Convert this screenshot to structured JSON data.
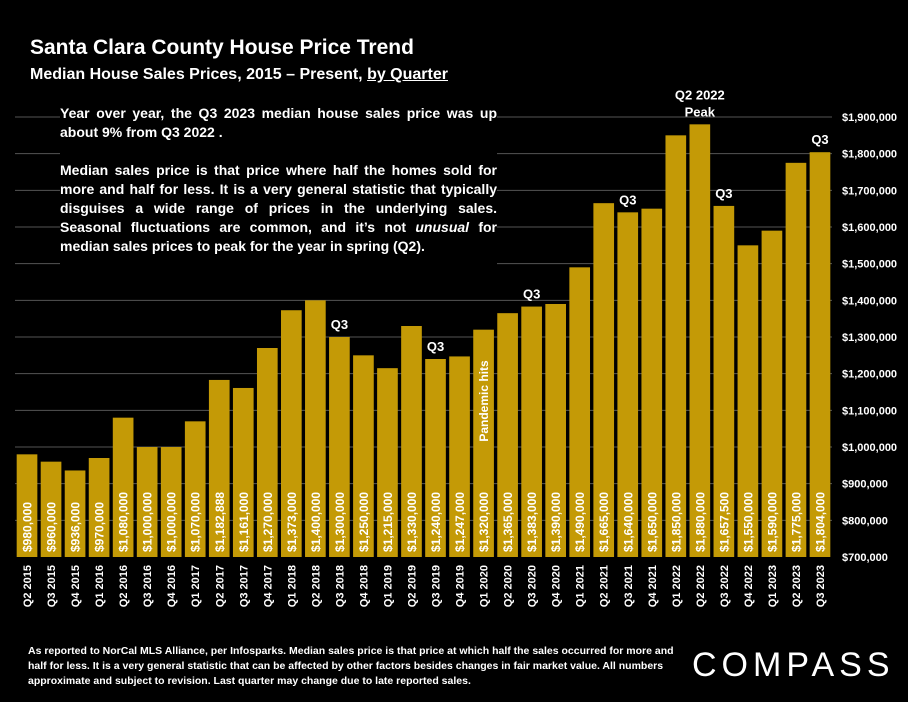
{
  "header": {
    "title": "Santa Clara County House Price Trend",
    "subtitle_main": "Median House Sales Prices, 2015 – Present, ",
    "subtitle_link": "by Quarter"
  },
  "note": {
    "p1": "Year over year, the Q3 2023 median house sales price was up about 9% from Q3 2022 .",
    "p2_a": "Median sales price is that price where half the homes sold for more and half for less. It is a very general statistic that typically disguises a wide range of prices in the underlying sales. Seasonal fluctuations are common, and it’s not ",
    "p2_em": "unusual",
    "p2_b": " for median sales prices to peak for the year in spring (Q2)."
  },
  "footer": {
    "text": "As reported to NorCal MLS Alliance, per Infosparks. Median sales price is that price at which half the sales occurred for more and half for less. It is a very general statistic that can be affected by other factors besides changes in fair market value. All numbers approximate and subject to revision. Last quarter may change due to late reported sales."
  },
  "logo": {
    "text": "COMPASS"
  },
  "colors": {
    "bar": "#c49a06",
    "background": "#000000",
    "text": "#ffffff",
    "grid": "#555555"
  },
  "chart_data": {
    "type": "bar",
    "categories": [
      "Q2 2015",
      "Q3 2015",
      "Q4 2015",
      "Q1 2016",
      "Q2 2016",
      "Q3 2016",
      "Q4 2016",
      "Q1 2017",
      "Q2 2017",
      "Q3 2017",
      "Q4 2017",
      "Q1 2018",
      "Q2 2018",
      "Q3 2018",
      "Q4 2018",
      "Q1 2019",
      "Q2 2019",
      "Q3 2019",
      "Q4 2019",
      "Q1 2020",
      "Q2 2020",
      "Q3 2020",
      "Q4 2020",
      "Q1 2021",
      "Q2 2021",
      "Q3 2021",
      "Q4 2021",
      "Q1 2022",
      "Q2 2022",
      "Q3 2022",
      "Q4 2022",
      "Q1 2023",
      "Q2 2023",
      "Q3 2023"
    ],
    "values": [
      980000,
      960000,
      936000,
      970000,
      1080000,
      1000000,
      1000000,
      1070000,
      1182888,
      1161000,
      1270000,
      1373000,
      1400000,
      1300000,
      1250000,
      1215000,
      1330000,
      1240000,
      1247000,
      1320000,
      1365000,
      1383000,
      1390000,
      1490000,
      1665000,
      1640000,
      1650000,
      1850000,
      1880000,
      1657500,
      1550000,
      1590000,
      1775000,
      1804000
    ],
    "value_labels": [
      "$980,000",
      "$960,000",
      "$936,000",
      "$970,000",
      "$1,080,000",
      "$1,000,000",
      "$1,000,000",
      "$1,070,000",
      "$1,182,888",
      "$1,161,000",
      "$1,270,000",
      "$1,373,000",
      "$1,400,000",
      "$1,300,000",
      "$1,250,000",
      "$1,215,000",
      "$1,330,000",
      "$1,240,000",
      "$1,247,000",
      "$1,320,000",
      "$1,365,000",
      "$1,383,000",
      "$1,390,000",
      "$1,490,000",
      "$1,665,000",
      "$1,640,000",
      "$1,650,000",
      "$1,850,000",
      "$1,880,000",
      "$1,657,500",
      "$1,550,000",
      "$1,590,000",
      "$1,775,000",
      "$1,804,000"
    ],
    "ylim": [
      700000,
      1900000
    ],
    "yticks": [
      700000,
      800000,
      900000,
      1000000,
      1100000,
      1200000,
      1300000,
      1400000,
      1500000,
      1600000,
      1700000,
      1800000,
      1900000
    ],
    "ytick_labels": [
      "$700,000",
      "$800,000",
      "$900,000",
      "$1,000,000",
      "$1,100,000",
      "$1,200,000",
      "$1,300,000",
      "$1,400,000",
      "$1,500,000",
      "$1,600,000",
      "$1,700,000",
      "$1,800,000",
      "$1,900,000"
    ],
    "y_axis_side": "right",
    "grid": true,
    "annotations": [
      {
        "category": "Q3 2018",
        "lines": [
          "Q3"
        ]
      },
      {
        "category": "Q3 2019",
        "lines": [
          "Q3"
        ]
      },
      {
        "category": "Q3 2020",
        "lines": [
          "Q3"
        ]
      },
      {
        "category": "Q3 2021",
        "lines": [
          "Q3"
        ]
      },
      {
        "category": "Q2 2022",
        "lines": [
          "Q2 2022",
          "Peak"
        ]
      },
      {
        "category": "Q3 2022",
        "lines": [
          "Q3"
        ]
      },
      {
        "category": "Q3 2023",
        "lines": [
          "Q3"
        ]
      }
    ],
    "bar_text": {
      "category": "Q1 2020",
      "text": "Pandemic hits"
    }
  }
}
